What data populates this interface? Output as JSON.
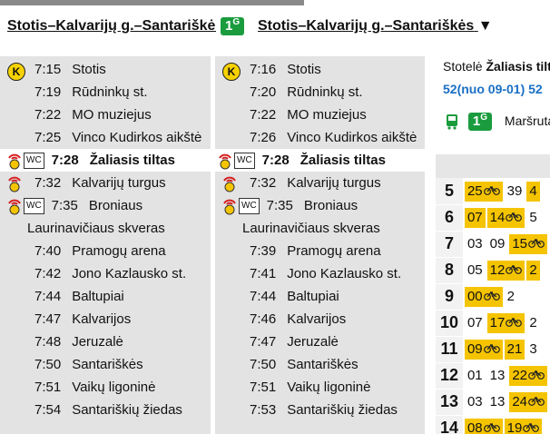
{
  "header": {
    "left_title": "Stotis–Kalvarijų g.–Santariškės",
    "badge": {
      "number": "1",
      "suffix": "G"
    },
    "right_title": "Stotis–Kalvarijų g.–Santariškės",
    "dropdown": "▼"
  },
  "columns": [
    {
      "rows": [
        {
          "time": "7:15",
          "stop": "Stotis",
          "k": "K"
        },
        {
          "time": "7:19",
          "stop": "Rūdninkų st."
        },
        {
          "time": "7:22",
          "stop": "MO muziejus"
        },
        {
          "time": "7:25",
          "stop": "Vinco Kudirkos aikštė"
        },
        {
          "time": "7:28",
          "stop": "Žaliasis tiltas",
          "signal": true,
          "wc": "WC",
          "current": true
        },
        {
          "time": "7:32",
          "stop": "Kalvarijų turgus",
          "signal": true
        },
        {
          "time": "7:35",
          "stop": "Broniaus\nLaurinavičiaus skveras",
          "signal": true,
          "wc": "WC"
        },
        {
          "time": "7:40",
          "stop": "Pramogų arena"
        },
        {
          "time": "7:42",
          "stop": "Jono Kazlausko st."
        },
        {
          "time": "7:44",
          "stop": "Baltupiai"
        },
        {
          "time": "7:47",
          "stop": "Kalvarijos"
        },
        {
          "time": "7:48",
          "stop": "Jeruzalė"
        },
        {
          "time": "7:50",
          "stop": "Santariškės"
        },
        {
          "time": "7:51",
          "stop": "Vaikų ligoninė"
        },
        {
          "time": "7:54",
          "stop": "Santariškių žiedas"
        }
      ]
    },
    {
      "rows": [
        {
          "time": "7:16",
          "stop": "Stotis",
          "k": "K"
        },
        {
          "time": "7:20",
          "stop": "Rūdninkų st."
        },
        {
          "time": "7:22",
          "stop": "MO muziejus"
        },
        {
          "time": "7:26",
          "stop": "Vinco Kudirkos aikštė"
        },
        {
          "time": "7:28",
          "stop": "Žaliasis tiltas",
          "signal": true,
          "wc": "WC",
          "current": true
        },
        {
          "time": "7:32",
          "stop": "Kalvarijų turgus",
          "signal": true
        },
        {
          "time": "7:35",
          "stop": "Broniaus\nLaurinavičiaus skveras",
          "signal": true,
          "wc": "WC"
        },
        {
          "time": "7:39",
          "stop": "Pramogų arena"
        },
        {
          "time": "7:41",
          "stop": "Jono Kazlausko st."
        },
        {
          "time": "7:44",
          "stop": "Baltupiai"
        },
        {
          "time": "7:46",
          "stop": "Kalvarijos"
        },
        {
          "time": "7:47",
          "stop": "Jeruzalė"
        },
        {
          "time": "7:50",
          "stop": "Santariškės"
        },
        {
          "time": "7:51",
          "stop": "Vaikų ligoninė"
        },
        {
          "time": "7:53",
          "stop": "Santariškių žiedas"
        }
      ]
    }
  ],
  "panel": {
    "stop_label": "Stotelė",
    "stop_name": "Žaliasis tiltas",
    "codes": "52(nuo 09-01) 52",
    "badge": {
      "number": "1",
      "suffix": "G"
    },
    "route_label": "Maršrutas",
    "hours": [
      {
        "hour": "5",
        "minutes": [
          {
            "m": "25",
            "hl": true,
            "bike": true
          },
          {
            "m": "39"
          },
          {
            "m": "4",
            "hl": true
          }
        ]
      },
      {
        "hour": "6",
        "minutes": [
          {
            "m": "07",
            "hl": true
          },
          {
            "m": "14",
            "hl": true,
            "bike": true
          },
          {
            "m": "5"
          }
        ]
      },
      {
        "hour": "7",
        "minutes": [
          {
            "m": "03"
          },
          {
            "m": "09"
          },
          {
            "m": "15",
            "hl": true,
            "bike": true
          }
        ]
      },
      {
        "hour": "8",
        "minutes": [
          {
            "m": "05"
          },
          {
            "m": "12",
            "hl": true,
            "bike": true
          },
          {
            "m": "2",
            "hl": true
          }
        ]
      },
      {
        "hour": "9",
        "minutes": [
          {
            "m": "00",
            "hl": true,
            "bike": true
          },
          {
            "m": "2"
          }
        ]
      },
      {
        "hour": "10",
        "minutes": [
          {
            "m": "07"
          },
          {
            "m": "17",
            "hl": true,
            "bike": true
          },
          {
            "m": "2"
          }
        ]
      },
      {
        "hour": "11",
        "minutes": [
          {
            "m": "09",
            "hl": true,
            "bike": true
          },
          {
            "m": "21",
            "hl": true
          },
          {
            "m": "3"
          }
        ]
      },
      {
        "hour": "12",
        "minutes": [
          {
            "m": "01"
          },
          {
            "m": "13"
          },
          {
            "m": "22",
            "hl": true,
            "bike": true
          }
        ]
      },
      {
        "hour": "13",
        "minutes": [
          {
            "m": "03"
          },
          {
            "m": "13"
          },
          {
            "m": "24",
            "hl": true,
            "bike": true
          }
        ]
      },
      {
        "hour": "14",
        "minutes": [
          {
            "m": "08",
            "hl": true,
            "bike": true
          },
          {
            "m": "19",
            "hl": true,
            "bike": true
          }
        ]
      }
    ]
  }
}
